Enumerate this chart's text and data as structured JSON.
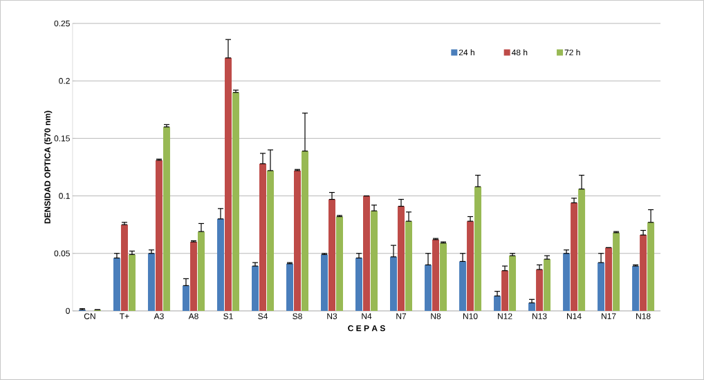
{
  "chart_data": {
    "type": "bar",
    "xlabel": "C E P A S",
    "ylabel": "DENSIDAD OPTICA (570 nm)",
    "categories": [
      "CN",
      "T+",
      "A3",
      "A8",
      "S1",
      "S4",
      "S8",
      "N3",
      "N4",
      "N7",
      "N8",
      "N10",
      "N12",
      "N13",
      "N14",
      "N17",
      "N18"
    ],
    "series": [
      {
        "name": "24 h",
        "color": "#4a7ebb",
        "values": [
          0.001,
          0.046,
          0.05,
          0.022,
          0.08,
          0.039,
          0.041,
          0.049,
          0.046,
          0.047,
          0.04,
          0.043,
          0.013,
          0.007,
          0.05,
          0.042,
          0.039
        ],
        "errors": [
          [
            0.001,
            0.002
          ],
          [
            0.046,
            0.05
          ],
          [
            0.05,
            0.053
          ],
          [
            0.022,
            0.028
          ],
          [
            0.08,
            0.089
          ],
          [
            0.039,
            0.042
          ],
          [
            0.041,
            0.042
          ],
          [
            0.049,
            0.05
          ],
          [
            0.046,
            0.05
          ],
          [
            0.047,
            0.057
          ],
          [
            0.04,
            0.05
          ],
          [
            0.043,
            0.05
          ],
          [
            0.013,
            0.017
          ],
          [
            0.007,
            0.01
          ],
          [
            0.05,
            0.053
          ],
          [
            0.042,
            0.05
          ],
          [
            0.039,
            0.04
          ]
        ]
      },
      {
        "name": "48 h",
        "color": "#be4b48",
        "values": [
          0,
          0.075,
          0.131,
          0.06,
          0.22,
          0.128,
          0.122,
          0.097,
          0.1,
          0.091,
          0.062,
          0.078,
          0.035,
          0.036,
          0.094,
          0.055,
          0.066
        ],
        "errors": [
          null,
          [
            0.075,
            0.077
          ],
          [
            0.131,
            0.132
          ],
          [
            0.06,
            0.061
          ],
          [
            0.22,
            0.236
          ],
          [
            0.128,
            0.137
          ],
          [
            0.122,
            0.123
          ],
          [
            0.097,
            0.103
          ],
          [
            0.1,
            0.1
          ],
          [
            0.091,
            0.097
          ],
          [
            0.062,
            0.063
          ],
          [
            0.078,
            0.082
          ],
          [
            0.035,
            0.039
          ],
          [
            0.036,
            0.04
          ],
          [
            0.094,
            0.098
          ],
          [
            0.055,
            0.055
          ],
          [
            0.066,
            0.07
          ]
        ]
      },
      {
        "name": "72 h",
        "color": "#98b954",
        "values": [
          0.001,
          0.049,
          0.16,
          0.069,
          0.19,
          0.122,
          0.139,
          0.082,
          0.087,
          0.078,
          0.059,
          0.108,
          0.048,
          0.045,
          0.106,
          0.068,
          0.077
        ],
        "errors": [
          [
            0.001,
            0.001
          ],
          [
            0.049,
            0.052
          ],
          [
            0.16,
            0.162
          ],
          [
            0.069,
            0.076
          ],
          [
            0.19,
            0.192
          ],
          [
            0.122,
            0.14
          ],
          [
            0.139,
            0.172
          ],
          [
            0.082,
            0.083
          ],
          [
            0.087,
            0.092
          ],
          [
            0.078,
            0.086
          ],
          [
            0.059,
            0.06
          ],
          [
            0.108,
            0.118
          ],
          [
            0.048,
            0.05
          ],
          [
            0.045,
            0.048
          ],
          [
            0.106,
            0.118
          ],
          [
            0.068,
            0.069
          ],
          [
            0.077,
            0.088
          ]
        ]
      }
    ],
    "ylim": [
      0,
      0.25
    ],
    "yticks": [
      0,
      0.05,
      0.1,
      0.15,
      0.2,
      0.25
    ],
    "grid": "y",
    "legend": "top right"
  }
}
